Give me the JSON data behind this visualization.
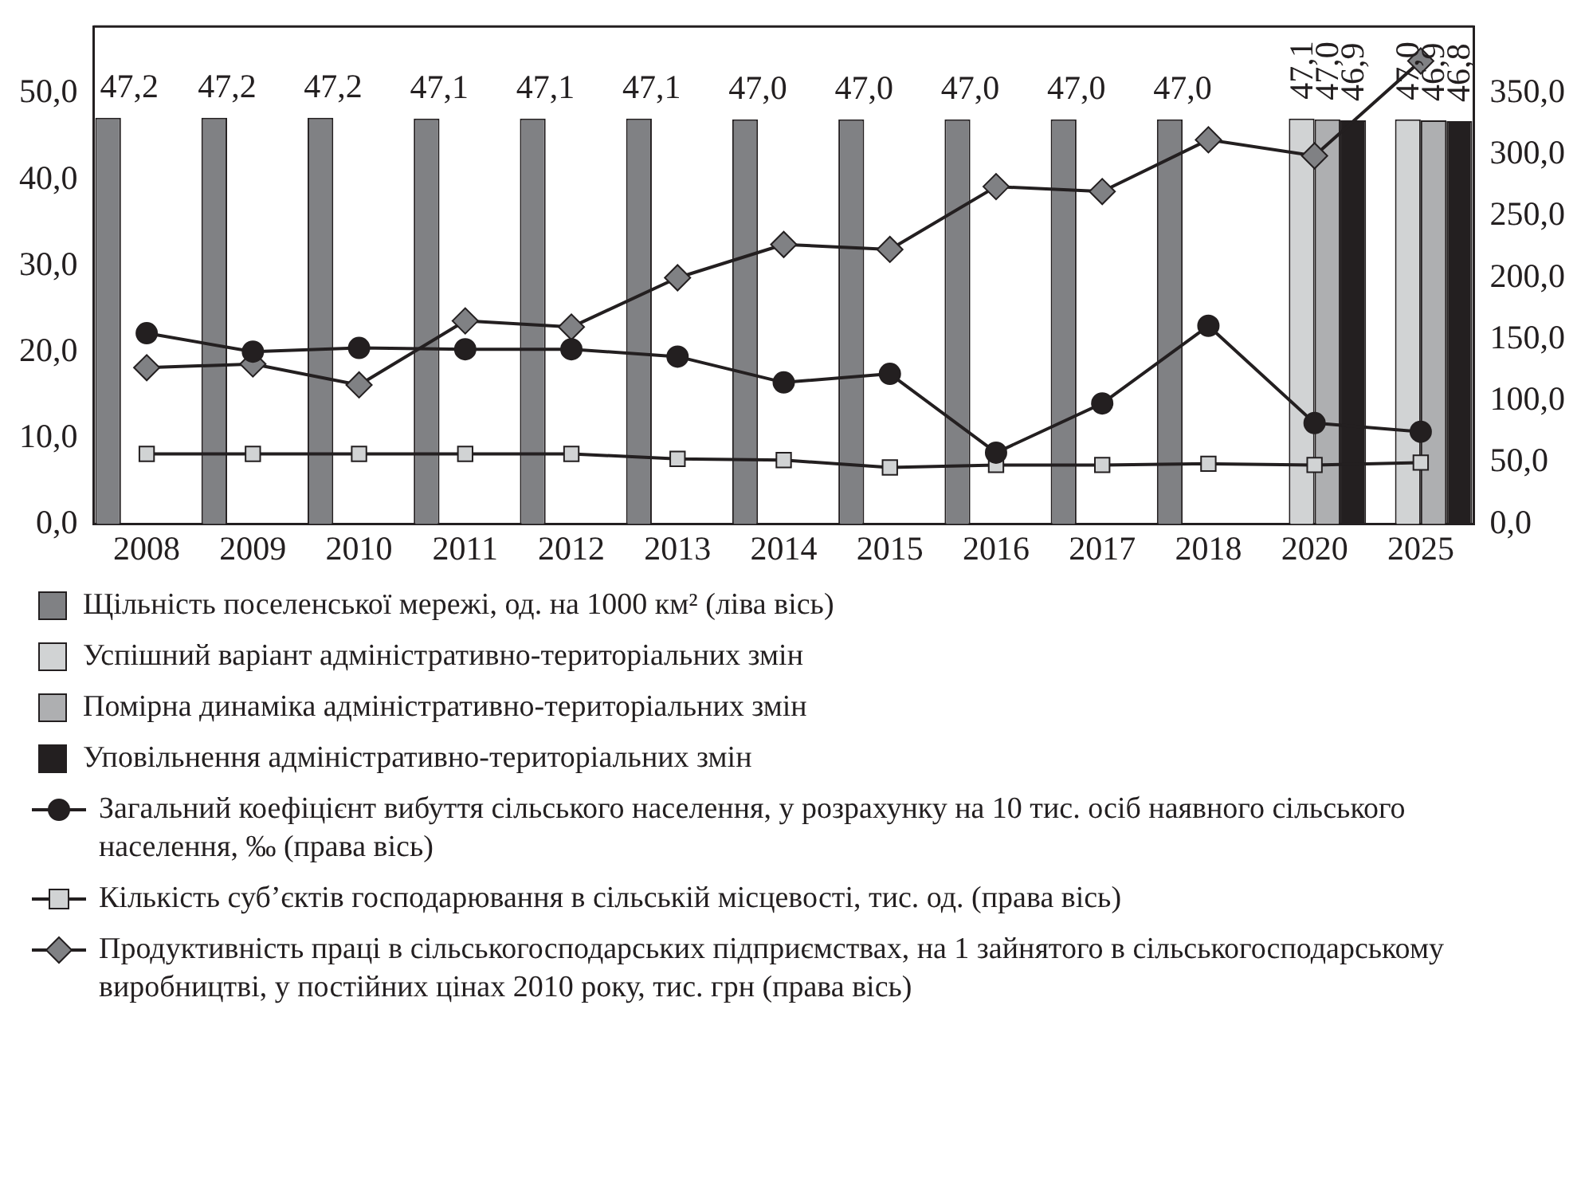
{
  "chart_data": {
    "type": "bar",
    "categories": [
      "2008",
      "2009",
      "2010",
      "2011",
      "2012",
      "2013",
      "2014",
      "2015",
      "2016",
      "2017",
      "2018",
      "2020",
      "2025"
    ],
    "series": [
      {
        "name": "Щільність поселенської мережі, од. на 1000 км² (ліва вісь)",
        "color": "#808184",
        "values": [
          47.2,
          47.2,
          47.2,
          47.1,
          47.1,
          47.1,
          47.0,
          47.0,
          47.0,
          47.0,
          47.0,
          null,
          null
        ],
        "value_labels": [
          "47,2",
          "47,2",
          "47,2",
          "47,1",
          "47,1",
          "47,1",
          "47,0",
          "47,0",
          "47,0",
          "47,0",
          "47,0",
          null,
          null
        ]
      },
      {
        "name": "Успішний варіант адміністративно-територіальних змін",
        "color": "#d1d3d4",
        "values": [
          null,
          null,
          null,
          null,
          null,
          null,
          null,
          null,
          null,
          null,
          null,
          47.1,
          47.0
        ],
        "value_labels": [
          null,
          null,
          null,
          null,
          null,
          null,
          null,
          null,
          null,
          null,
          null,
          "47,1",
          "47,0"
        ]
      },
      {
        "name": "Помірна динаміка адміністративно-територіальних змін",
        "color": "#aeafb1",
        "values": [
          null,
          null,
          null,
          null,
          null,
          null,
          null,
          null,
          null,
          null,
          null,
          47.0,
          46.9
        ],
        "value_labels": [
          null,
          null,
          null,
          null,
          null,
          null,
          null,
          null,
          null,
          null,
          null,
          "47,0",
          "46,9"
        ]
      },
      {
        "name": "Уповільнення адміністративно-територіальних змін",
        "color": "#231f20",
        "values": [
          null,
          null,
          null,
          null,
          null,
          null,
          null,
          null,
          null,
          null,
          null,
          46.9,
          46.8
        ],
        "value_labels": [
          null,
          null,
          null,
          null,
          null,
          null,
          null,
          null,
          null,
          null,
          null,
          "46,9",
          "46,8"
        ]
      },
      {
        "name": "Загальний коефіцієнт вибуття сільського населення, у розрахунку на 10 тис. осіб наявного сільського населення, ‰ (права вісь)",
        "type": "line",
        "axis": "y2",
        "marker": "circle",
        "color": "#231f20",
        "values": [
          155,
          140,
          143,
          142,
          142,
          136,
          115,
          122,
          58,
          98,
          161,
          82,
          75
        ]
      },
      {
        "name": "Кількість суб’єктів господарювання в сільській місцевості, тис. од. (права вісь)",
        "type": "line",
        "axis": "y2",
        "marker": "square",
        "color": "#d1d3d4",
        "values": [
          57,
          57,
          57,
          57,
          57,
          53,
          52,
          46,
          48,
          48,
          49,
          48,
          50
        ]
      },
      {
        "name": "Продуктивність праці в сільськогосподарських підприємствах, на 1 зайнятого в сільськогосподарському виробництві, у постійних цінах 2010 року, тис. грн (права вісь)",
        "type": "line",
        "axis": "y2",
        "marker": "diamond",
        "color": "#808184",
        "values": [
          127,
          130,
          113,
          165,
          160,
          200,
          227,
          223,
          274,
          270,
          312,
          299,
          376
        ]
      }
    ],
    "ylim": [
      0,
      57.8
    ],
    "yticks": [
      {
        "value": 0,
        "label": "0,0"
      },
      {
        "value": 10,
        "label": "10,0"
      },
      {
        "value": 20,
        "label": "20,0"
      },
      {
        "value": 30,
        "label": "30,0"
      },
      {
        "value": 40,
        "label": "40,0"
      },
      {
        "value": 50,
        "label": "50,0"
      }
    ],
    "y2lim": [
      0,
      404
    ],
    "y2ticks": [
      {
        "value": 0,
        "label": "0,0"
      },
      {
        "value": 50,
        "label": "50,0"
      },
      {
        "value": 100,
        "label": "100,0"
      },
      {
        "value": 150,
        "label": "150,0"
      },
      {
        "value": 200,
        "label": "200,0"
      },
      {
        "value": 250,
        "label": "250,0"
      },
      {
        "value": 300,
        "label": "300,0"
      },
      {
        "value": 350,
        "label": "350,0"
      }
    ],
    "grid": false,
    "legend": "bottom"
  }
}
